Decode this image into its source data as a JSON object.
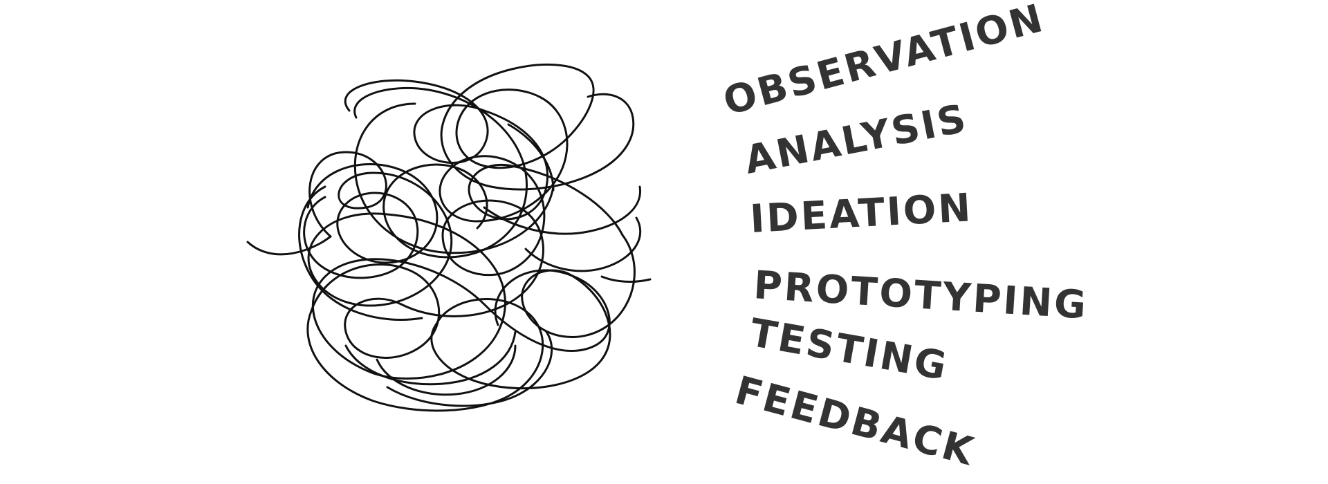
{
  "diagram": {
    "stages": [
      {
        "label": "OBSERVATION"
      },
      {
        "label": "ANALYSIS"
      },
      {
        "label": "IDEATION"
      },
      {
        "label": "PROTOTYPING"
      },
      {
        "label": "TESTING"
      },
      {
        "label": "FEEDBACK"
      }
    ],
    "colors": {
      "text": "#333333",
      "line": "#111111"
    },
    "illustration": "tangled-line-scribble"
  }
}
